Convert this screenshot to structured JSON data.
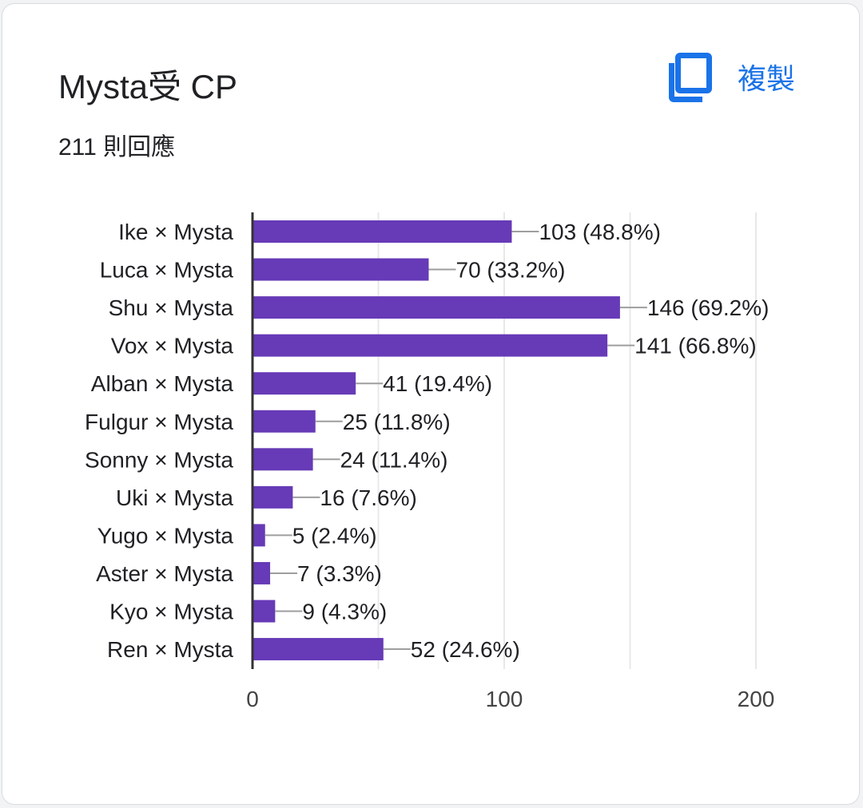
{
  "card": {
    "title": "Mysta受 CP",
    "response_count": "211 則回應",
    "copy_label": "複製",
    "copy_icon": "copy-icon"
  },
  "colors": {
    "bar": "#673ab7",
    "accent": "#1a73e8",
    "gridline": "#e8e8e8",
    "connector": "#9e9e9e",
    "axis": "#333333",
    "text": "#202124"
  },
  "chart_data": {
    "type": "bar",
    "orientation": "horizontal",
    "categories": [
      "Ike × Mysta",
      "Luca × Mysta",
      "Shu × Mysta",
      "Vox × Mysta",
      "Alban × Mysta",
      "Fulgur × Mysta",
      "Sonny × Mysta",
      "Uki × Mysta",
      "Yugo × Mysta",
      "Aster × Mysta",
      "Kyo × Mysta",
      "Ren × Mysta"
    ],
    "values": [
      103,
      70,
      146,
      141,
      41,
      25,
      24,
      16,
      5,
      7,
      9,
      52
    ],
    "data_labels": [
      "103 (48.8%)",
      "70 (33.2%)",
      "146 (69.2%)",
      "141 (66.8%)",
      "41 (19.4%)",
      "25 (11.8%)",
      "24 (11.4%)",
      "16 (7.6%)",
      "5 (2.4%)",
      "7 (3.3%)",
      "9 (4.3%)",
      "52 (24.6%)"
    ],
    "xlim": [
      0,
      200
    ],
    "x_ticks": [
      0,
      100,
      200
    ],
    "x_tick_labels": [
      "0",
      "100",
      "200"
    ],
    "grid": true
  }
}
